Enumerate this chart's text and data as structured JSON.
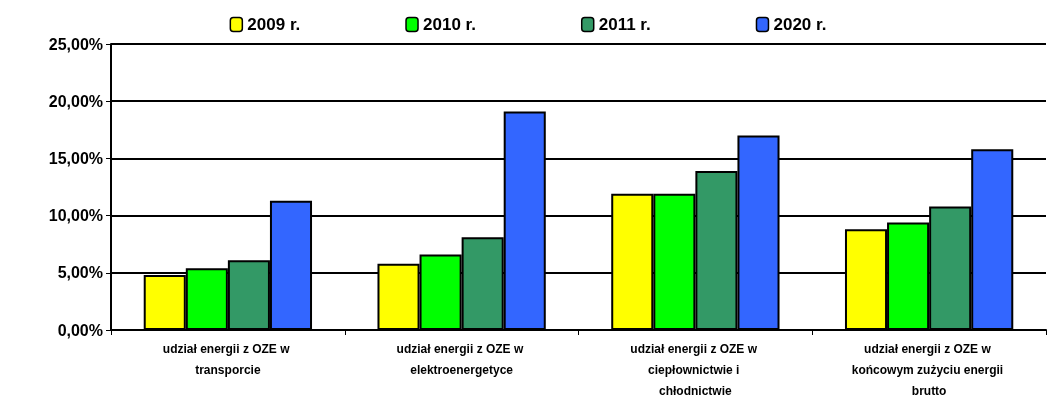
{
  "chart_data": {
    "type": "bar",
    "categories": [
      "udział energii z OZE w transporcie",
      "udział energii z OZE w elektroenergetyce",
      "udział energii z OZE w ciepłownictwie i chłodnictwie",
      "udział energii z OZE w końcowym zużyciu energii brutto"
    ],
    "series": [
      {
        "name": "2009 r.",
        "color": "#ffff00",
        "values": [
          4.8,
          5.8,
          11.9,
          8.8
        ]
      },
      {
        "name": "2010 r.",
        "color": "#00ff00",
        "values": [
          5.4,
          6.6,
          11.9,
          9.4
        ]
      },
      {
        "name": "2011 r.",
        "color": "#339966",
        "values": [
          6.1,
          8.1,
          13.9,
          10.8
        ]
      },
      {
        "name": "2020 r.",
        "color": "#3366ff",
        "values": [
          11.3,
          19.1,
          17.0,
          15.8
        ]
      }
    ],
    "ylim": [
      0,
      25
    ],
    "yticks": [
      {
        "value": 0,
        "label": "0,00%"
      },
      {
        "value": 5,
        "label": "5,00%"
      },
      {
        "value": 10,
        "label": "10,00%"
      },
      {
        "value": 15,
        "label": "15,00%"
      },
      {
        "value": 20,
        "label": "20,00%"
      },
      {
        "value": 25,
        "label": "25,00%"
      }
    ],
    "grid": true,
    "legend": "top"
  }
}
